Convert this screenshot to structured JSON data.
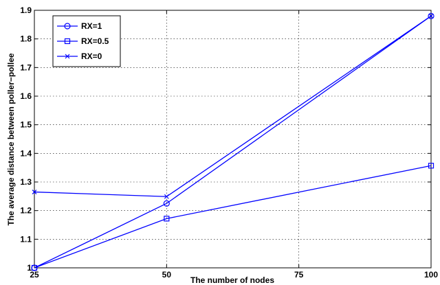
{
  "chart_data": {
    "type": "line",
    "xlabel": "The number of nodes",
    "ylabel": "The average distance between poller−pollee",
    "x": [
      25,
      50,
      100
    ],
    "xlim": [
      25,
      100
    ],
    "ylim": [
      1,
      1.9
    ],
    "xticks": [
      25,
      50,
      75,
      100
    ],
    "yticks": [
      1,
      1.1,
      1.2,
      1.3,
      1.4,
      1.5,
      1.6,
      1.7,
      1.8,
      1.9
    ],
    "xtick_labels": [
      "25",
      "50",
      "75",
      "100"
    ],
    "ytick_labels": [
      "1",
      "1.1",
      "1.2",
      "1.3",
      "1.4",
      "1.5",
      "1.6",
      "1.7",
      "1.8",
      "1.9"
    ],
    "grid": true,
    "legend_position": "top-left",
    "series": [
      {
        "name": "RX=1",
        "marker": "circle",
        "color": "#0000ff",
        "values": [
          1.0,
          1.225,
          1.88
        ]
      },
      {
        "name": "RX=0.5",
        "marker": "square",
        "color": "#0000ff",
        "values": [
          1.0,
          1.172,
          1.357
        ]
      },
      {
        "name": "RX=0",
        "marker": "x",
        "color": "#0000ff",
        "values": [
          1.265,
          1.249,
          1.88
        ]
      }
    ]
  }
}
